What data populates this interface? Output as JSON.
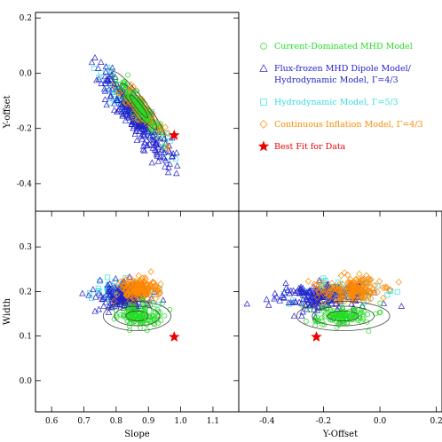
{
  "chart_data": [
    {
      "id": "slope-vs-yoffset",
      "type": "scatter",
      "xlabel": "",
      "ylabel": "Y-offset",
      "xlim": [
        0.55,
        1.18
      ],
      "ylim": [
        -0.5,
        0.22
      ],
      "xticks": [],
      "yticks": [
        {
          "value": 0.2,
          "label": "0.2"
        },
        {
          "value": 0.0,
          "label": "0.0"
        },
        {
          "value": -0.2,
          "label": "-0.2"
        },
        {
          "value": -0.4,
          "label": "-0.4"
        }
      ],
      "clouds": [
        {
          "series": "hydro53",
          "cx": 0.85,
          "cy": -0.125,
          "sx": 0.05,
          "sy": 0.065,
          "rho": -0.93,
          "n": 110,
          "seed": 11
        },
        {
          "series": "flux",
          "cx": 0.86,
          "cy": -0.16,
          "sx": 0.055,
          "sy": 0.085,
          "rho": -0.92,
          "n": 230,
          "seed": 12
        },
        {
          "series": "inflation",
          "cx": 0.87,
          "cy": -0.12,
          "sx": 0.035,
          "sy": 0.05,
          "rho": -0.9,
          "n": 120,
          "seed": 13
        },
        {
          "series": "mhd",
          "cx": 0.872,
          "cy": -0.12,
          "sx": 0.03,
          "sy": 0.045,
          "rho": -0.9,
          "n": 110,
          "seed": 14
        }
      ],
      "contours": [
        {
          "cx": 0.87,
          "cy": -0.12,
          "sx": 0.028,
          "sy": 0.042,
          "rho": -0.93,
          "k": [
            1.0,
            2.0,
            3.0
          ]
        }
      ],
      "best_fit": {
        "x": 0.98,
        "y": -0.225
      }
    },
    {
      "id": "slope-vs-width",
      "type": "scatter",
      "xlabel": "Slope",
      "ylabel": "Width",
      "xlim": [
        0.55,
        1.18
      ],
      "ylim": [
        -0.07,
        0.38
      ],
      "xticks": [
        {
          "value": 0.6,
          "label": "0.6"
        },
        {
          "value": 0.7,
          "label": "0.7"
        },
        {
          "value": 0.8,
          "label": "0.8"
        },
        {
          "value": 0.9,
          "label": "0.9"
        },
        {
          "value": 1.0,
          "label": "1.0"
        },
        {
          "value": 1.1,
          "label": "1.1"
        }
      ],
      "yticks": [
        {
          "value": 0.0,
          "label": "0.0"
        },
        {
          "value": 0.1,
          "label": "0.1"
        },
        {
          "value": 0.2,
          "label": "0.2"
        },
        {
          "value": 0.3,
          "label": "0.3"
        }
      ],
      "clouds": [
        {
          "series": "hydro53",
          "cx": 0.82,
          "cy": 0.2,
          "sx": 0.045,
          "sy": 0.012,
          "rho": 0.0,
          "n": 90,
          "seed": 21
        },
        {
          "series": "flux",
          "cx": 0.82,
          "cy": 0.19,
          "sx": 0.04,
          "sy": 0.015,
          "rho": 0.1,
          "n": 180,
          "seed": 22
        },
        {
          "series": "inflation",
          "cx": 0.87,
          "cy": 0.205,
          "sx": 0.03,
          "sy": 0.012,
          "rho": 0.0,
          "n": 160,
          "seed": 23
        },
        {
          "series": "mhd",
          "cx": 0.865,
          "cy": 0.145,
          "sx": 0.035,
          "sy": 0.012,
          "rho": 0.0,
          "n": 140,
          "seed": 24
        }
      ],
      "contours": [
        {
          "cx": 0.865,
          "cy": 0.145,
          "sx": 0.035,
          "sy": 0.011,
          "rho": 0.0,
          "k": [
            1.0,
            2.0,
            3.0
          ]
        }
      ],
      "best_fit": {
        "x": 0.98,
        "y": 0.098
      }
    },
    {
      "id": "yoffset-vs-width",
      "type": "scatter",
      "xlabel": "Y-Offset",
      "ylabel": "",
      "xlim": [
        -0.5,
        0.22
      ],
      "ylim": [
        -0.07,
        0.38
      ],
      "xticks": [
        {
          "value": -0.4,
          "label": "-0.4"
        },
        {
          "value": -0.2,
          "label": "-0.2"
        },
        {
          "value": 0.0,
          "label": "0.0"
        },
        {
          "value": 0.2,
          "label": "0.2"
        }
      ],
      "yticks": [],
      "clouds": [
        {
          "series": "hydro53",
          "cx": -0.14,
          "cy": 0.2,
          "sx": 0.07,
          "sy": 0.012,
          "rho": 0.0,
          "n": 90,
          "seed": 31
        },
        {
          "series": "flux",
          "cx": -0.22,
          "cy": 0.19,
          "sx": 0.08,
          "sy": 0.015,
          "rho": 0.2,
          "n": 190,
          "seed": 32
        },
        {
          "series": "inflation",
          "cx": -0.1,
          "cy": 0.205,
          "sx": 0.06,
          "sy": 0.014,
          "rho": 0.0,
          "n": 170,
          "seed": 33
        },
        {
          "series": "mhd",
          "cx": -0.14,
          "cy": 0.145,
          "sx": 0.055,
          "sy": 0.012,
          "rho": 0.0,
          "n": 140,
          "seed": 34
        }
      ],
      "contours": [
        {
          "cx": -0.13,
          "cy": 0.145,
          "sx": 0.055,
          "sy": 0.011,
          "rho": 0.0,
          "k": [
            1.0,
            2.0,
            3.0
          ]
        }
      ],
      "best_fit": {
        "x": -0.225,
        "y": 0.098
      }
    }
  ],
  "series": {
    "mhd": {
      "color": "#22dd22",
      "marker": "circle"
    },
    "flux": {
      "color": "#2222cc",
      "marker": "triangle"
    },
    "hydro53": {
      "color": "#33dddd",
      "marker": "square"
    },
    "inflation": {
      "color": "#ff8800",
      "marker": "diamond"
    },
    "best": {
      "color": "#ee0000",
      "marker": "star"
    }
  },
  "contour_color": "#444444",
  "legend": {
    "placement": "top-right",
    "entries": [
      {
        "series": "mhd",
        "lines": [
          "Current-Dominated MHD Model"
        ]
      },
      {
        "series": "flux",
        "lines": [
          "Flux-frozen MHD Dipole Model/",
          "Hydrodynamic Model, Γ=4/3"
        ]
      },
      {
        "series": "hydro53",
        "lines": [
          "Hydrodynamic Model, Γ=5/3"
        ]
      },
      {
        "series": "inflation",
        "lines": [
          "Continuous Inflation Model, Γ=4/3"
        ]
      },
      {
        "series": "best",
        "lines": [
          "Best Fit for Data"
        ]
      }
    ]
  }
}
